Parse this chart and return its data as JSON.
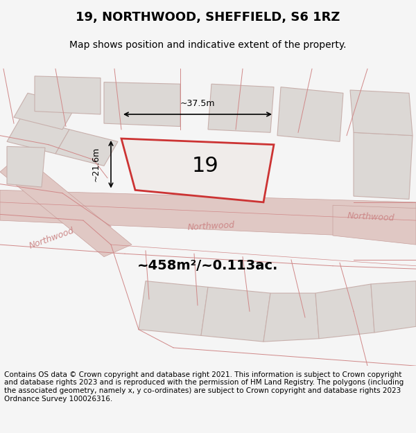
{
  "title": "19, NORTHWOOD, SHEFFIELD, S6 1RZ",
  "subtitle": "Map shows position and indicative extent of the property.",
  "footer": "Contains OS data © Crown copyright and database right 2021. This information is subject to Crown copyright and database rights 2023 and is reproduced with the permission of HM Land Registry. The polygons (including the associated geometry, namely x, y co-ordinates) are subject to Crown copyright and database rights 2023 Ordnance Survey 100026316.",
  "area_label": "~458m²/~0.113ac.",
  "property_number": "19",
  "dim_width": "~37.5m",
  "dim_height": "~21.6m",
  "bg_color": "#f5f0f0",
  "map_bg": "#f0ebe8",
  "road_color": "#e8d0cc",
  "road_outline": "#d4a8a0",
  "property_fill": "#f5f0ee",
  "property_edge": "#cc3333",
  "property_edge_width": 2.0,
  "road_label_color": "#cc8888",
  "title_fontsize": 13,
  "subtitle_fontsize": 10,
  "footer_fontsize": 7.5
}
